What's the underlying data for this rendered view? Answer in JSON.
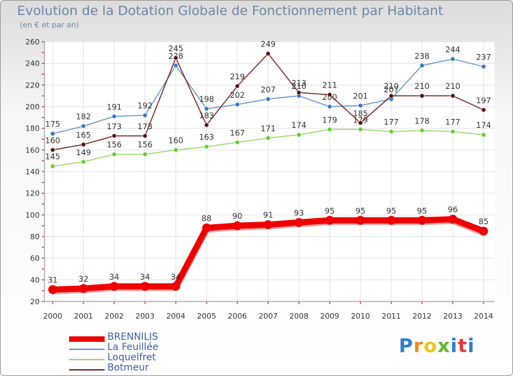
{
  "title": "Evolution de la Dotation Globale de Fonctionnement par Habitant",
  "subtitle": "(en € et par an)",
  "logo": "Proxiti",
  "chart_data": {
    "type": "line",
    "title": "Evolution de la Dotation Globale de Fonctionnement par Habitant",
    "subtitle": "(en € et par an)",
    "xlabel": "",
    "ylabel": "",
    "x": [
      2000,
      2001,
      2002,
      2003,
      2004,
      2005,
      2006,
      2007,
      2008,
      2009,
      2010,
      2011,
      2012,
      2013,
      2014
    ],
    "ylim": [
      20,
      260
    ],
    "yticks": [
      20,
      40,
      60,
      80,
      100,
      120,
      140,
      160,
      180,
      200,
      220,
      240,
      260
    ],
    "grid": true,
    "legend_position": "bottom-left",
    "series": [
      {
        "name": "La Feuillée",
        "color": "#6699cc",
        "marker": "#3377cc",
        "values": [
          175,
          182,
          191,
          192,
          238,
          198,
          202,
          207,
          210,
          200,
          201,
          207,
          238,
          244,
          237
        ]
      },
      {
        "name": "Loquelfret",
        "color": "#99dd66",
        "marker": "#66cc33",
        "values": [
          145,
          149,
          156,
          156,
          160,
          163,
          167,
          171,
          174,
          179,
          179,
          177,
          178,
          177,
          174
        ]
      },
      {
        "name": "Botmeur",
        "color": "#7a2a2a",
        "marker": "#5a1010",
        "values": [
          160,
          165,
          173,
          173,
          245,
          183,
          219,
          249,
          213,
          211,
          185,
          210,
          210,
          210,
          197
        ]
      },
      {
        "name": "BRENNILIS",
        "color": "#ee0000",
        "marker": "#ee0000",
        "values": [
          31,
          32,
          34,
          34,
          34,
          88,
          90,
          91,
          93,
          95,
          95,
          95,
          95,
          96,
          85
        ]
      }
    ]
  }
}
